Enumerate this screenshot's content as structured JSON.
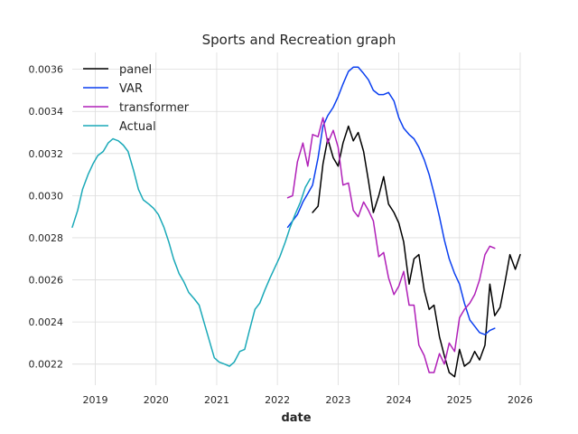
{
  "chart_data": {
    "type": "line",
    "title": "Sports and Recreation graph",
    "xlabel": "date",
    "ylabel": "",
    "xlim": [
      2018.62,
      2026.0
    ],
    "ylim": [
      0.0021,
      0.00368
    ],
    "x_ticks": [
      {
        "value": 2019,
        "label": "2019"
      },
      {
        "value": 2020,
        "label": "2020"
      },
      {
        "value": 2021,
        "label": "2021"
      },
      {
        "value": 2022,
        "label": "2022"
      },
      {
        "value": 2023,
        "label": "2023"
      },
      {
        "value": 2024,
        "label": "2024"
      },
      {
        "value": 2025,
        "label": "2025"
      },
      {
        "value": 2026,
        "label": "2026"
      }
    ],
    "y_ticks": [
      {
        "value": 0.0022,
        "label": "0.0022"
      },
      {
        "value": 0.0024,
        "label": "0.0024"
      },
      {
        "value": 0.0026,
        "label": "0.0026"
      },
      {
        "value": 0.0028,
        "label": "0.0028"
      },
      {
        "value": 0.003,
        "label": "0.0030"
      },
      {
        "value": 0.0032,
        "label": "0.0032"
      },
      {
        "value": 0.0034,
        "label": "0.0034"
      },
      {
        "value": 0.0036,
        "label": "0.0036"
      }
    ],
    "grid": true,
    "legend": "top-left",
    "series": [
      {
        "name": "panel",
        "color": "#000000",
        "x": [
          2022.58,
          2022.67,
          2022.75,
          2022.83,
          2022.92,
          2023.0,
          2023.08,
          2023.17,
          2023.25,
          2023.33,
          2023.42,
          2023.5,
          2023.58,
          2023.67,
          2023.75,
          2023.83,
          2023.92,
          2024.0,
          2024.08,
          2024.17,
          2024.25,
          2024.33,
          2024.42,
          2024.5,
          2024.58,
          2024.67,
          2024.75,
          2024.83,
          2024.92,
          2025.0,
          2025.08,
          2025.17,
          2025.25,
          2025.33,
          2025.42,
          2025.5,
          2025.58,
          2025.67,
          2025.75,
          2025.83,
          2025.92,
          2026.0
        ],
        "y": [
          0.00292,
          0.00295,
          0.00315,
          0.00327,
          0.00318,
          0.00314,
          0.00325,
          0.00333,
          0.00326,
          0.0033,
          0.00321,
          0.00307,
          0.00292,
          0.003,
          0.00309,
          0.00296,
          0.00292,
          0.00287,
          0.00278,
          0.00258,
          0.0027,
          0.00272,
          0.00255,
          0.00246,
          0.00248,
          0.00233,
          0.00224,
          0.00216,
          0.00214,
          0.00227,
          0.00219,
          0.00221,
          0.00226,
          0.00222,
          0.00229,
          0.00258,
          0.00243,
          0.00247,
          0.00259,
          0.00272,
          0.00265,
          0.00272
        ]
      },
      {
        "name": "VAR",
        "color": "#0a3ff0",
        "x": [
          2022.17,
          2022.25,
          2022.33,
          2022.42,
          2022.5,
          2022.58,
          2022.67,
          2022.75,
          2022.83,
          2022.92,
          2023.0,
          2023.08,
          2023.17,
          2023.25,
          2023.33,
          2023.42,
          2023.5,
          2023.58,
          2023.67,
          2023.75,
          2023.83,
          2023.92,
          2024.0,
          2024.08,
          2024.17,
          2024.25,
          2024.33,
          2024.42,
          2024.5,
          2024.58,
          2024.67,
          2024.75,
          2024.83,
          2024.92,
          2025.0,
          2025.08,
          2025.17,
          2025.25,
          2025.33,
          2025.42,
          2025.5,
          2025.58
        ],
        "y": [
          0.00285,
          0.00288,
          0.00291,
          0.00297,
          0.00301,
          0.00305,
          0.00318,
          0.00333,
          0.00338,
          0.00342,
          0.00347,
          0.00353,
          0.00359,
          0.00361,
          0.00361,
          0.00358,
          0.00355,
          0.0035,
          0.00348,
          0.00348,
          0.00349,
          0.00345,
          0.00337,
          0.00332,
          0.00329,
          0.00327,
          0.00323,
          0.00317,
          0.0031,
          0.00301,
          0.0029,
          0.00279,
          0.0027,
          0.00263,
          0.00258,
          0.00249,
          0.00241,
          0.00238,
          0.00235,
          0.00234,
          0.00236,
          0.00237
        ]
      },
      {
        "name": "transformer",
        "color": "#b020b8",
        "x": [
          2022.17,
          2022.25,
          2022.33,
          2022.42,
          2022.5,
          2022.58,
          2022.67,
          2022.75,
          2022.83,
          2022.92,
          2023.0,
          2023.08,
          2023.17,
          2023.25,
          2023.33,
          2023.42,
          2023.5,
          2023.58,
          2023.67,
          2023.75,
          2023.83,
          2023.92,
          2024.0,
          2024.08,
          2024.17,
          2024.25,
          2024.33,
          2024.42,
          2024.5,
          2024.58,
          2024.67,
          2024.75,
          2024.83,
          2024.92,
          2025.0,
          2025.08,
          2025.17,
          2025.25,
          2025.33,
          2025.42,
          2025.5,
          2025.58
        ],
        "y": [
          0.00299,
          0.003,
          0.00316,
          0.00325,
          0.00314,
          0.00329,
          0.00328,
          0.00337,
          0.00325,
          0.00331,
          0.00323,
          0.00305,
          0.00306,
          0.00293,
          0.0029,
          0.00297,
          0.00293,
          0.00288,
          0.00271,
          0.00273,
          0.00261,
          0.00253,
          0.00257,
          0.00264,
          0.00248,
          0.00248,
          0.00229,
          0.00224,
          0.00216,
          0.00216,
          0.00225,
          0.0022,
          0.0023,
          0.00226,
          0.00242,
          0.00246,
          0.00249,
          0.00253,
          0.0026,
          0.00272,
          0.00276,
          0.00275
        ]
      },
      {
        "name": "Actual",
        "color": "#1aa9b8",
        "x": [
          2018.62,
          2018.71,
          2018.79,
          2018.88,
          2018.96,
          2019.04,
          2019.13,
          2019.21,
          2019.29,
          2019.38,
          2019.46,
          2019.54,
          2019.63,
          2019.71,
          2019.79,
          2019.88,
          2019.96,
          2020.04,
          2020.13,
          2020.21,
          2020.29,
          2020.38,
          2020.46,
          2020.54,
          2020.63,
          2020.71,
          2020.79,
          2020.88,
          2020.96,
          2021.04,
          2021.13,
          2021.21,
          2021.29,
          2021.38,
          2021.46,
          2021.54,
          2021.63,
          2021.71,
          2021.79,
          2021.88,
          2021.96,
          2022.04,
          2022.13,
          2022.21,
          2022.29,
          2022.38,
          2022.46,
          2022.54
        ],
        "y": [
          0.00285,
          0.00293,
          0.00303,
          0.0031,
          0.00315,
          0.00319,
          0.00321,
          0.00325,
          0.00327,
          0.00326,
          0.00324,
          0.00321,
          0.00312,
          0.00303,
          0.00298,
          0.00296,
          0.00294,
          0.00291,
          0.00285,
          0.00278,
          0.0027,
          0.00263,
          0.00259,
          0.00254,
          0.00251,
          0.00248,
          0.0024,
          0.00231,
          0.00223,
          0.00221,
          0.0022,
          0.00219,
          0.00221,
          0.00226,
          0.00227,
          0.00236,
          0.00246,
          0.00249,
          0.00255,
          0.00261,
          0.00266,
          0.00271,
          0.00278,
          0.00285,
          0.00291,
          0.00297,
          0.00304,
          0.00308
        ]
      }
    ]
  }
}
